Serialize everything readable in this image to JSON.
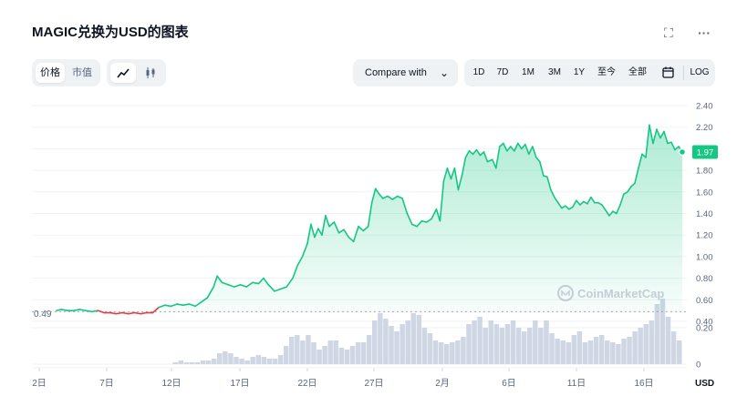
{
  "header": {
    "title": "MAGIC兑换为USD的图表",
    "fullscreen_icon": "expand-icon",
    "more_icon": "more-horizontal-icon",
    "more_label": "···"
  },
  "toolbar": {
    "metric_tabs": [
      {
        "label": "价格",
        "active": true
      },
      {
        "label": "市值",
        "active": false
      }
    ],
    "chart_types": [
      {
        "icon": "line-chart-icon",
        "active": true
      },
      {
        "icon": "candlestick-icon",
        "active": false
      }
    ],
    "compare_label": "Compare with",
    "ranges": [
      "1D",
      "7D",
      "1M",
      "3M",
      "1Y",
      "至今",
      "全部"
    ],
    "calendar_icon": "calendar-icon",
    "log_label": "LOG"
  },
  "chart_data": {
    "type": "area",
    "title": "MAGIC兑换为USD的图表",
    "xlabel": "",
    "ylabel": "USD",
    "x_ticks": [
      "2日",
      "7日",
      "12日",
      "17日",
      "22日",
      "27日",
      "2月",
      "6日",
      "11日",
      "16日"
    ],
    "y_ticks": [
      "2.40",
      "2.20",
      "2.00",
      "1.80",
      "1.60",
      "1.40",
      "1.20",
      "1.00",
      "0.80",
      "0.60",
      "0.40"
    ],
    "volume_ticks": [
      "0.20",
      "0"
    ],
    "ylim": [
      0.3,
      2.5
    ],
    "baseline": 0.49,
    "baseline_label": "0.49",
    "current_price": 1.97,
    "current_price_label": "1.97",
    "x_axis_unit": "USD",
    "watermark": "CoinMarketCap",
    "grid": true,
    "colors": {
      "up": "#16c784",
      "down": "#ea3943",
      "fill": "#16c784",
      "volume": "#cfd6e4",
      "badge": "#16c784"
    },
    "price_series": [
      {
        "day": 1.6,
        "v": 0.5
      },
      {
        "day": 2.0,
        "v": 0.51
      },
      {
        "day": 2.5,
        "v": 0.5
      },
      {
        "day": 3.0,
        "v": 0.5
      },
      {
        "day": 3.5,
        "v": 0.51
      },
      {
        "day": 4.0,
        "v": 0.5
      },
      {
        "day": 4.5,
        "v": 0.49
      },
      {
        "day": 5.0,
        "v": 0.5
      },
      {
        "day": 5.5,
        "v": 0.48
      },
      {
        "day": 6.0,
        "v": 0.48
      },
      {
        "day": 6.5,
        "v": 0.47
      },
      {
        "day": 7.0,
        "v": 0.48
      },
      {
        "day": 7.5,
        "v": 0.47
      },
      {
        "day": 8.0,
        "v": 0.48
      },
      {
        "day": 8.5,
        "v": 0.47
      },
      {
        "day": 9.0,
        "v": 0.48
      },
      {
        "day": 9.5,
        "v": 0.48
      },
      {
        "day": 10.0,
        "v": 0.53
      },
      {
        "day": 10.5,
        "v": 0.55
      },
      {
        "day": 11.0,
        "v": 0.54
      },
      {
        "day": 11.5,
        "v": 0.56
      },
      {
        "day": 12.0,
        "v": 0.55
      },
      {
        "day": 12.5,
        "v": 0.56
      },
      {
        "day": 13.0,
        "v": 0.54
      },
      {
        "day": 13.5,
        "v": 0.58
      },
      {
        "day": 14.0,
        "v": 0.62
      },
      {
        "day": 14.5,
        "v": 0.72
      },
      {
        "day": 14.8,
        "v": 0.82
      },
      {
        "day": 15.2,
        "v": 0.76
      },
      {
        "day": 15.7,
        "v": 0.74
      },
      {
        "day": 16.2,
        "v": 0.72
      },
      {
        "day": 16.7,
        "v": 0.74
      },
      {
        "day": 17.2,
        "v": 0.72
      },
      {
        "day": 17.7,
        "v": 0.76
      },
      {
        "day": 18.2,
        "v": 0.75
      },
      {
        "day": 18.6,
        "v": 0.8
      },
      {
        "day": 19.0,
        "v": 0.74
      },
      {
        "day": 19.5,
        "v": 0.68
      },
      {
        "day": 20.0,
        "v": 0.7
      },
      {
        "day": 20.5,
        "v": 0.72
      },
      {
        "day": 21.0,
        "v": 0.8
      },
      {
        "day": 21.4,
        "v": 0.92
      },
      {
        "day": 21.8,
        "v": 1.0
      },
      {
        "day": 22.2,
        "v": 1.12
      },
      {
        "day": 22.5,
        "v": 1.3
      },
      {
        "day": 22.8,
        "v": 1.18
      },
      {
        "day": 23.1,
        "v": 1.26
      },
      {
        "day": 23.4,
        "v": 1.2
      },
      {
        "day": 23.7,
        "v": 1.38
      },
      {
        "day": 24.0,
        "v": 1.28
      },
      {
        "day": 24.4,
        "v": 1.32
      },
      {
        "day": 24.8,
        "v": 1.22
      },
      {
        "day": 25.2,
        "v": 1.25
      },
      {
        "day": 25.6,
        "v": 1.18
      },
      {
        "day": 26.0,
        "v": 1.14
      },
      {
        "day": 26.4,
        "v": 1.28
      },
      {
        "day": 26.8,
        "v": 1.24
      },
      {
        "day": 27.2,
        "v": 1.28
      },
      {
        "day": 27.5,
        "v": 1.5
      },
      {
        "day": 27.8,
        "v": 1.63
      },
      {
        "day": 28.1,
        "v": 1.58
      },
      {
        "day": 28.4,
        "v": 1.54
      },
      {
        "day": 28.8,
        "v": 1.56
      },
      {
        "day": 29.2,
        "v": 1.53
      },
      {
        "day": 29.6,
        "v": 1.56
      },
      {
        "day": 30.0,
        "v": 1.54
      },
      {
        "day": 30.4,
        "v": 1.4
      },
      {
        "day": 30.8,
        "v": 1.3
      },
      {
        "day": 31.2,
        "v": 1.28
      },
      {
        "day": 31.6,
        "v": 1.33
      },
      {
        "day": 32.0,
        "v": 1.32
      },
      {
        "day": 32.4,
        "v": 1.35
      },
      {
        "day": 32.8,
        "v": 1.44
      },
      {
        "day": 33.1,
        "v": 1.33
      },
      {
        "day": 33.4,
        "v": 1.7
      },
      {
        "day": 33.7,
        "v": 1.82
      },
      {
        "day": 34.0,
        "v": 1.72
      },
      {
        "day": 34.3,
        "v": 1.82
      },
      {
        "day": 34.6,
        "v": 1.62
      },
      {
        "day": 34.9,
        "v": 1.75
      },
      {
        "day": 35.2,
        "v": 1.92
      },
      {
        "day": 35.5,
        "v": 1.98
      },
      {
        "day": 35.8,
        "v": 1.95
      },
      {
        "day": 36.1,
        "v": 1.99
      },
      {
        "day": 36.4,
        "v": 1.94
      },
      {
        "day": 36.7,
        "v": 1.97
      },
      {
        "day": 37.0,
        "v": 1.88
      },
      {
        "day": 37.4,
        "v": 1.9
      },
      {
        "day": 37.7,
        "v": 1.82
      },
      {
        "day": 38.0,
        "v": 2.02
      },
      {
        "day": 38.3,
        "v": 2.05
      },
      {
        "day": 38.6,
        "v": 1.98
      },
      {
        "day": 38.9,
        "v": 2.02
      },
      {
        "day": 39.2,
        "v": 1.98
      },
      {
        "day": 39.5,
        "v": 2.05
      },
      {
        "day": 39.8,
        "v": 2.0
      },
      {
        "day": 40.1,
        "v": 2.04
      },
      {
        "day": 40.4,
        "v": 1.95
      },
      {
        "day": 40.7,
        "v": 2.02
      },
      {
        "day": 41.0,
        "v": 1.92
      },
      {
        "day": 41.3,
        "v": 1.88
      },
      {
        "day": 41.6,
        "v": 1.75
      },
      {
        "day": 41.9,
        "v": 1.74
      },
      {
        "day": 42.2,
        "v": 1.62
      },
      {
        "day": 42.5,
        "v": 1.55
      },
      {
        "day": 42.8,
        "v": 1.5
      },
      {
        "day": 43.1,
        "v": 1.45
      },
      {
        "day": 43.4,
        "v": 1.47
      },
      {
        "day": 43.7,
        "v": 1.44
      },
      {
        "day": 44.0,
        "v": 1.46
      },
      {
        "day": 44.3,
        "v": 1.52
      },
      {
        "day": 44.6,
        "v": 1.48
      },
      {
        "day": 44.9,
        "v": 1.51
      },
      {
        "day": 45.2,
        "v": 1.49
      },
      {
        "day": 45.5,
        "v": 1.55
      },
      {
        "day": 45.8,
        "v": 1.5
      },
      {
        "day": 46.1,
        "v": 1.5
      },
      {
        "day": 46.4,
        "v": 1.48
      },
      {
        "day": 46.7,
        "v": 1.43
      },
      {
        "day": 47.0,
        "v": 1.38
      },
      {
        "day": 47.3,
        "v": 1.42
      },
      {
        "day": 47.6,
        "v": 1.4
      },
      {
        "day": 47.9,
        "v": 1.48
      },
      {
        "day": 48.2,
        "v": 1.58
      },
      {
        "day": 48.5,
        "v": 1.6
      },
      {
        "day": 48.8,
        "v": 1.65
      },
      {
        "day": 49.1,
        "v": 1.68
      },
      {
        "day": 49.4,
        "v": 1.82
      },
      {
        "day": 49.7,
        "v": 1.95
      },
      {
        "day": 50.0,
        "v": 1.92
      },
      {
        "day": 50.3,
        "v": 2.22
      },
      {
        "day": 50.6,
        "v": 2.05
      },
      {
        "day": 50.9,
        "v": 2.18
      },
      {
        "day": 51.2,
        "v": 2.1
      },
      {
        "day": 51.5,
        "v": 2.16
      },
      {
        "day": 51.8,
        "v": 2.05
      },
      {
        "day": 52.1,
        "v": 2.06
      },
      {
        "day": 52.4,
        "v": 1.99
      },
      {
        "day": 52.7,
        "v": 2.02
      },
      {
        "day": 53.0,
        "v": 1.97
      }
    ],
    "volume_series": [
      0.0,
      0.0,
      0.0,
      0.0,
      0.0,
      0.0,
      0.0,
      0.0,
      0.0,
      0.0,
      0.0,
      0.0,
      0.0,
      0.0,
      0.0,
      0.0,
      0.0,
      0.0,
      0.0,
      0.0,
      0.0,
      0.01,
      0.02,
      0.01,
      0.01,
      0.01,
      0.02,
      0.02,
      0.03,
      0.06,
      0.07,
      0.06,
      0.04,
      0.03,
      0.02,
      0.04,
      0.05,
      0.04,
      0.03,
      0.03,
      0.05,
      0.1,
      0.15,
      0.16,
      0.13,
      0.16,
      0.12,
      0.08,
      0.1,
      0.13,
      0.13,
      0.09,
      0.08,
      0.1,
      0.12,
      0.12,
      0.16,
      0.24,
      0.28,
      0.25,
      0.21,
      0.18,
      0.22,
      0.24,
      0.28,
      0.27,
      0.2,
      0.17,
      0.13,
      0.12,
      0.11,
      0.12,
      0.13,
      0.15,
      0.22,
      0.24,
      0.26,
      0.2,
      0.24,
      0.22,
      0.2,
      0.22,
      0.24,
      0.2,
      0.18,
      0.2,
      0.24,
      0.2,
      0.24,
      0.17,
      0.14,
      0.13,
      0.12,
      0.16,
      0.18,
      0.12,
      0.13,
      0.15,
      0.16,
      0.13,
      0.12,
      0.11,
      0.14,
      0.15,
      0.18,
      0.2,
      0.22,
      0.24,
      0.33,
      0.36,
      0.26,
      0.18,
      0.13
    ]
  }
}
